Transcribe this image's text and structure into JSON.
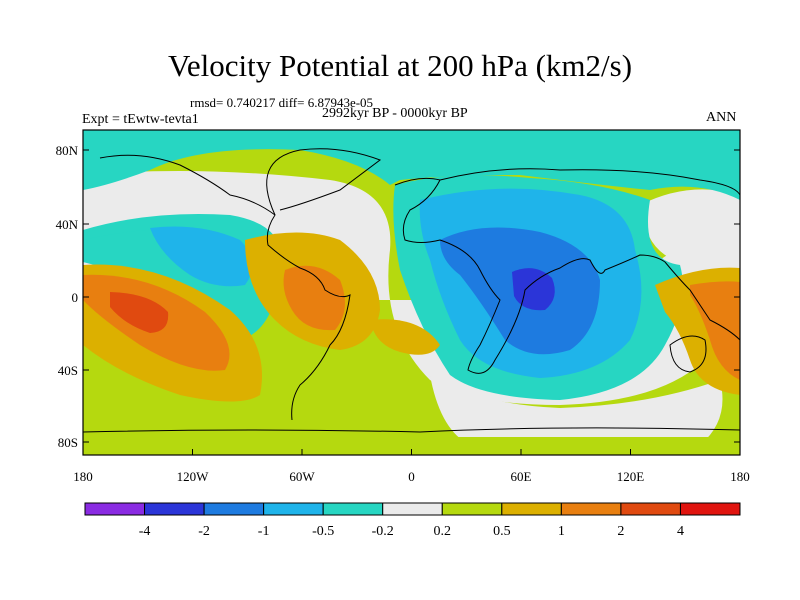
{
  "title": "Velocity Potential at 200 hPa (km2/s)",
  "stats_line": "rmsd= 0.740217 diff= 6.87943e-05",
  "left_label": "Expt = tEwtw-tevta1",
  "center_label": "2992kyr BP - 0000kyr BP",
  "right_label": "ANN",
  "lat_ticks": [
    "80N",
    "40N",
    "0",
    "40S",
    "80S"
  ],
  "lon_ticks": [
    "180",
    "120W",
    "60W",
    "0",
    "60E",
    "120E",
    "180"
  ],
  "colorbar": {
    "colors": [
      "#8a2be2",
      "#2b35d8",
      "#1e7be0",
      "#1fb4ea",
      "#27d6c2",
      "#ebebeb",
      "#b5d90f",
      "#dcb000",
      "#e87f10",
      "#e04a10",
      "#e0140f"
    ],
    "labels": [
      "-4",
      "-2",
      "-1",
      "-0.5",
      "-0.2",
      "0.2",
      "0.5",
      "1",
      "2",
      "4"
    ]
  },
  "colors": {
    "coast": "#000000",
    "background": "#ffffff"
  }
}
